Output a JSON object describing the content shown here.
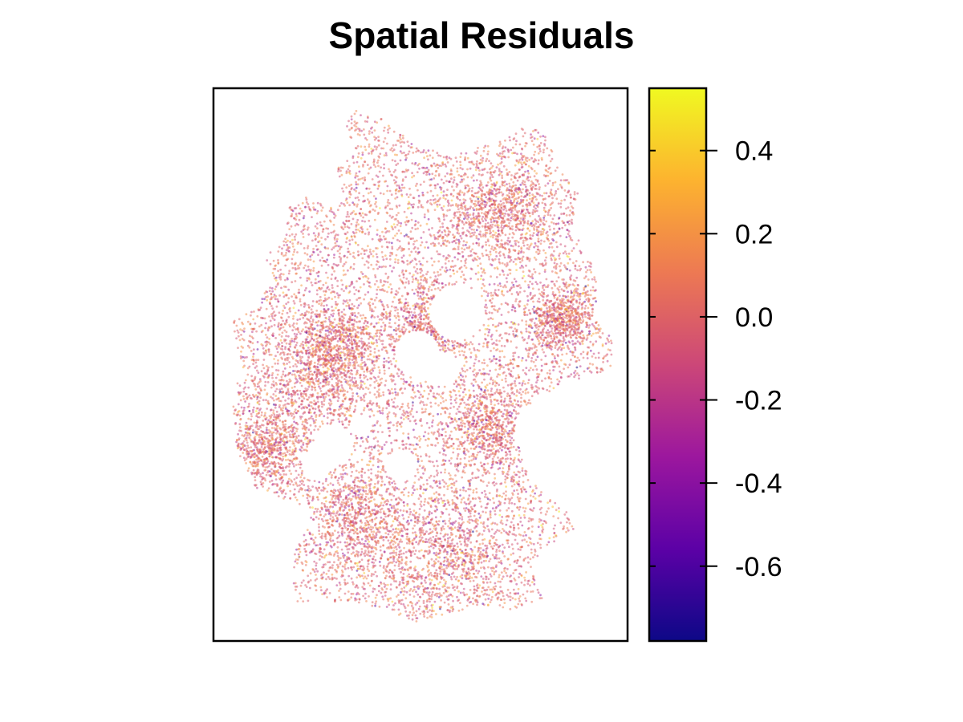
{
  "chart_data": {
    "type": "scatter",
    "title": "Spatial Residuals",
    "xlabel": "",
    "ylabel": "",
    "axes_visible": false,
    "grid": false,
    "point_alpha": 0.5,
    "point_count_approx": 12000,
    "colorbar": {
      "palette": "plasma",
      "range": [
        -0.78,
        0.55
      ],
      "ticks": [
        0.4,
        0.2,
        0.0,
        -0.2,
        -0.4,
        -0.6
      ],
      "tick_labels": [
        "0.4",
        "0.2",
        "0.0",
        "-0.2",
        "-0.4",
        "-0.6"
      ],
      "position": "right",
      "colors": [
        "#0d0887",
        "#5c01a6",
        "#9c179e",
        "#cc4778",
        "#ed7953",
        "#fdb32f",
        "#f0f921"
      ]
    },
    "residual_distribution": {
      "center": 0.0,
      "spread": 0.12,
      "dense_clusters": "western and central regions"
    }
  }
}
